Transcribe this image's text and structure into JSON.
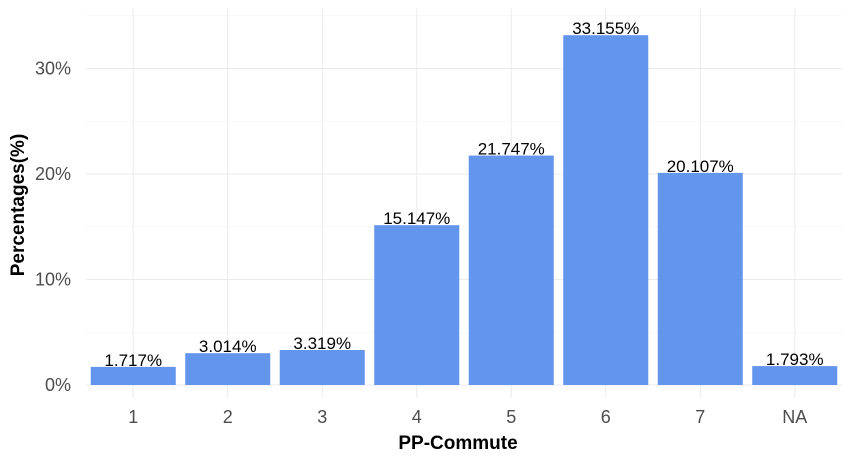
{
  "chart_data": {
    "type": "bar",
    "xlabel": "PP-Commute",
    "ylabel": "Percentages(%)",
    "categories": [
      "1",
      "2",
      "3",
      "4",
      "5",
      "6",
      "7",
      "NA"
    ],
    "values": [
      1.717,
      3.014,
      3.319,
      15.147,
      21.747,
      33.155,
      20.107,
      1.793
    ],
    "data_labels": [
      "1.717%",
      "3.014%",
      "3.319%",
      "15.147%",
      "21.747%",
      "33.155%",
      "20.107%",
      "1.793%"
    ],
    "ylim": [
      0,
      35
    ],
    "yticks": [
      0,
      10,
      20,
      30
    ],
    "ytick_labels": [
      "0%",
      "10%",
      "20%",
      "30%"
    ],
    "grid": true,
    "legend": "none",
    "bar_color": "#6495ED"
  }
}
